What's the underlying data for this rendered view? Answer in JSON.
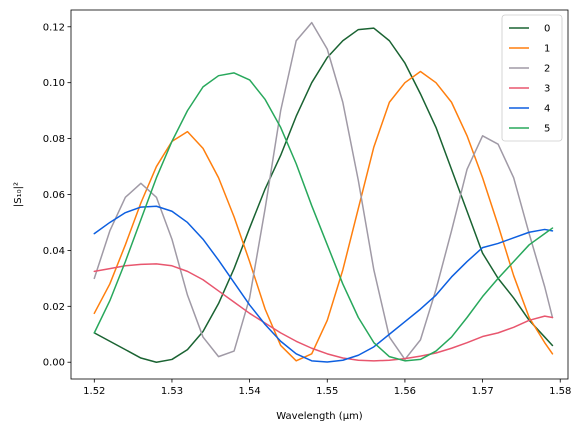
{
  "chart_data": {
    "type": "line",
    "title": "",
    "xlabel": "Wavelength (μm)",
    "ylabel": "|S₁₀|²",
    "xlim": [
      1.517,
      1.581
    ],
    "ylim": [
      -0.006,
      0.126
    ],
    "xticks": [
      {
        "value": 1.52,
        "label": "1.52"
      },
      {
        "value": 1.53,
        "label": "1.53"
      },
      {
        "value": 1.54,
        "label": "1.54"
      },
      {
        "value": 1.55,
        "label": "1.55"
      },
      {
        "value": 1.56,
        "label": "1.56"
      },
      {
        "value": 1.57,
        "label": "1.57"
      },
      {
        "value": 1.58,
        "label": "1.58"
      }
    ],
    "yticks": [
      {
        "value": 0.0,
        "label": "0.00"
      },
      {
        "value": 0.02,
        "label": "0.02"
      },
      {
        "value": 0.04,
        "label": "0.04"
      },
      {
        "value": 0.06,
        "label": "0.06"
      },
      {
        "value": 0.08,
        "label": "0.08"
      },
      {
        "value": 0.1,
        "label": "0.10"
      },
      {
        "value": 0.12,
        "label": "0.12"
      }
    ],
    "grid": false,
    "legend_position": "top-right",
    "series": [
      {
        "name": "0",
        "color": "#1a6332",
        "x": [
          1.52,
          1.522,
          1.524,
          1.526,
          1.528,
          1.53,
          1.532,
          1.534,
          1.536,
          1.538,
          1.54,
          1.542,
          1.544,
          1.546,
          1.548,
          1.55,
          1.552,
          1.554,
          1.556,
          1.558,
          1.56,
          1.562,
          1.564,
          1.566,
          1.568,
          1.57,
          1.572,
          1.574,
          1.576,
          1.578,
          1.579
        ],
        "y": [
          0.0105,
          0.0075,
          0.0045,
          0.0015,
          0.0,
          0.001,
          0.0045,
          0.011,
          0.021,
          0.0335,
          0.048,
          0.062,
          0.074,
          0.088,
          0.1,
          0.109,
          0.115,
          0.119,
          0.1195,
          0.115,
          0.107,
          0.096,
          0.084,
          0.069,
          0.054,
          0.039,
          0.03,
          0.023,
          0.015,
          0.009,
          0.006
        ]
      },
      {
        "name": "1",
        "color": "#ff7f0e",
        "x": [
          1.52,
          1.522,
          1.524,
          1.526,
          1.528,
          1.53,
          1.532,
          1.534,
          1.536,
          1.538,
          1.54,
          1.542,
          1.544,
          1.546,
          1.548,
          1.55,
          1.552,
          1.554,
          1.556,
          1.558,
          1.56,
          1.562,
          1.564,
          1.566,
          1.568,
          1.57,
          1.572,
          1.574,
          1.576,
          1.578,
          1.579
        ],
        "y": [
          0.0175,
          0.028,
          0.042,
          0.057,
          0.07,
          0.079,
          0.0825,
          0.0765,
          0.066,
          0.052,
          0.036,
          0.019,
          0.006,
          0.0005,
          0.003,
          0.015,
          0.033,
          0.055,
          0.077,
          0.093,
          0.1,
          0.104,
          0.1,
          0.093,
          0.081,
          0.066,
          0.049,
          0.031,
          0.016,
          0.007,
          0.003
        ]
      },
      {
        "name": "2",
        "color": "#a09aa6",
        "x": [
          1.52,
          1.522,
          1.524,
          1.526,
          1.528,
          1.53,
          1.532,
          1.534,
          1.536,
          1.538,
          1.54,
          1.542,
          1.544,
          1.546,
          1.548,
          1.55,
          1.552,
          1.554,
          1.556,
          1.558,
          1.56,
          1.562,
          1.564,
          1.566,
          1.568,
          1.57,
          1.572,
          1.574,
          1.576,
          1.578,
          1.579
        ],
        "y": [
          0.03,
          0.047,
          0.059,
          0.064,
          0.059,
          0.044,
          0.024,
          0.009,
          0.002,
          0.004,
          0.023,
          0.055,
          0.09,
          0.115,
          0.1215,
          0.112,
          0.093,
          0.065,
          0.033,
          0.009,
          0.001,
          0.008,
          0.026,
          0.047,
          0.069,
          0.081,
          0.078,
          0.066,
          0.046,
          0.027,
          0.016
        ]
      },
      {
        "name": "3",
        "color": "#e8566e",
        "x": [
          1.52,
          1.522,
          1.524,
          1.526,
          1.528,
          1.53,
          1.532,
          1.534,
          1.536,
          1.538,
          1.54,
          1.542,
          1.544,
          1.546,
          1.548,
          1.55,
          1.552,
          1.554,
          1.556,
          1.558,
          1.56,
          1.562,
          1.564,
          1.566,
          1.568,
          1.57,
          1.572,
          1.574,
          1.576,
          1.578,
          1.579
        ],
        "y": [
          0.0325,
          0.0335,
          0.0345,
          0.035,
          0.0352,
          0.0345,
          0.0325,
          0.0295,
          0.0255,
          0.0215,
          0.0175,
          0.014,
          0.0105,
          0.0075,
          0.005,
          0.003,
          0.0015,
          0.0007,
          0.0005,
          0.0007,
          0.0013,
          0.0022,
          0.0033,
          0.005,
          0.007,
          0.0092,
          0.0105,
          0.0125,
          0.015,
          0.0165,
          0.016
        ]
      },
      {
        "name": "4",
        "color": "#0d5fe0",
        "x": [
          1.52,
          1.522,
          1.524,
          1.526,
          1.528,
          1.53,
          1.532,
          1.534,
          1.536,
          1.538,
          1.54,
          1.542,
          1.544,
          1.546,
          1.548,
          1.55,
          1.552,
          1.554,
          1.556,
          1.558,
          1.56,
          1.562,
          1.564,
          1.566,
          1.568,
          1.57,
          1.572,
          1.574,
          1.576,
          1.578,
          1.579
        ],
        "y": [
          0.046,
          0.05,
          0.0535,
          0.0555,
          0.0558,
          0.054,
          0.05,
          0.044,
          0.0365,
          0.0285,
          0.0205,
          0.0135,
          0.0075,
          0.003,
          0.0005,
          0.0001,
          0.0007,
          0.0025,
          0.0055,
          0.01,
          0.0145,
          0.019,
          0.024,
          0.0305,
          0.036,
          0.041,
          0.0425,
          0.0445,
          0.0465,
          0.0475,
          0.047
        ]
      },
      {
        "name": "5",
        "color": "#28a85c",
        "x": [
          1.52,
          1.522,
          1.524,
          1.526,
          1.528,
          1.53,
          1.532,
          1.534,
          1.536,
          1.538,
          1.54,
          1.542,
          1.544,
          1.546,
          1.548,
          1.55,
          1.552,
          1.554,
          1.556,
          1.558,
          1.56,
          1.562,
          1.564,
          1.566,
          1.568,
          1.57,
          1.572,
          1.574,
          1.576,
          1.578,
          1.579
        ],
        "y": [
          0.0105,
          0.022,
          0.036,
          0.051,
          0.066,
          0.079,
          0.09,
          0.0985,
          0.1025,
          0.1035,
          0.101,
          0.094,
          0.084,
          0.071,
          0.056,
          0.042,
          0.028,
          0.016,
          0.007,
          0.002,
          0.0005,
          0.001,
          0.004,
          0.009,
          0.016,
          0.0235,
          0.03,
          0.036,
          0.042,
          0.046,
          0.048
        ]
      }
    ]
  }
}
